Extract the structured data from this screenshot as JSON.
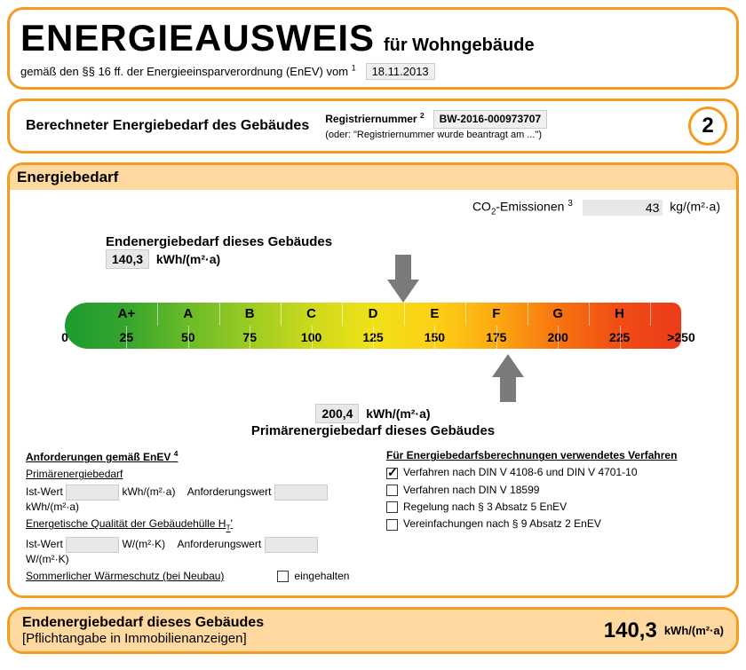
{
  "header": {
    "title": "ENERGIEAUSWEIS",
    "subtitle": "für Wohngebäude",
    "line2_prefix": "gemäß den §§ 16 ff. der Energieeinsparverordnung (EnEV) vom",
    "line2_sup": "1",
    "date": "18.11.2013"
  },
  "section2": {
    "left_title": "Berechneter Energiebedarf des Gebäudes",
    "reg_label": "Registriernummer",
    "reg_sup": "2",
    "reg_value": "BW-2016-000973707",
    "reg_note": "(oder: \"Registriernummer wurde beantragt am ...\")",
    "page_num": "2"
  },
  "energiebedarf": {
    "title": "Energiebedarf",
    "co2_label_prefix": "CO",
    "co2_label_suffix": "-Emissionen",
    "co2_sup": "3",
    "co2_value": "43",
    "co2_unit": "kg/(m²·a)",
    "endenergie_label": "Endenergiebedarf dieses Gebäudes",
    "endenergie_value": "140,3",
    "endenergie_unit": "kWh/(m²·a)",
    "primaer_label": "Primärenergiebedarf dieses Gebäudes",
    "primaer_value": "200,4",
    "primaer_unit": "kWh/(m²·a)",
    "arrow_top_percent": 54.9,
    "arrow_bottom_percent": 71.9,
    "scale": {
      "classes": [
        "A+",
        "A",
        "B",
        "C",
        "D",
        "E",
        "F",
        "G",
        "H"
      ],
      "numbers": [
        "0",
        "25",
        "50",
        "75",
        "100",
        "125",
        "150",
        "175",
        "200",
        "225",
        ">250"
      ],
      "class_colors": [
        "#1c9b2f",
        "#52b02b",
        "#8bc525",
        "#b9d31f",
        "#e6e01a",
        "#fde016",
        "#fcbc13",
        "#f98d12",
        "#ed3b1a"
      ],
      "num_colors": [
        "#1c9b2f",
        "#36a52d",
        "#6bbb28",
        "#9ccb22",
        "#cdd91c",
        "#f0e118",
        "#fdd015",
        "#fba912",
        "#f77410",
        "#f04c14",
        "#ed3b1a"
      ]
    }
  },
  "anforderungen": {
    "title": "Anforderungen gemäß EnEV",
    "title_sup": "4",
    "rows": [
      {
        "label": "Primärenergiebedarf",
        "underline": true
      },
      {
        "ist": "Ist-Wert",
        "unit": "kWh/(m²·a)",
        "anf": "Anforderungswert",
        "unit2": "kWh/(m²·a)"
      },
      {
        "label": "Energetische Qualität der Gebäudehülle H",
        "label_sub": "T",
        "label_suffix": "'",
        "underline": true
      },
      {
        "ist": "Ist-Wert",
        "unit": "W/(m²·K)",
        "anf": "Anforderungswert",
        "unit2": "W/(m²·K)"
      },
      {
        "label": "Sommerlicher Wärmeschutz (bei Neubau)",
        "underline": true,
        "checkbox": true,
        "check_label": "eingehalten"
      }
    ]
  },
  "verfahren": {
    "title": "Für Energiebedarfsberechnungen verwendetes Verfahren",
    "items": [
      {
        "checked": true,
        "label": "Verfahren nach DIN V 4108-6 und DIN V 4701-10"
      },
      {
        "checked": false,
        "label": "Verfahren nach DIN V 18599"
      },
      {
        "checked": false,
        "label": "Regelung nach § 3 Absatz 5 EnEV"
      },
      {
        "checked": false,
        "label": "Vereinfachungen nach § 9 Absatz 2 EnEV"
      }
    ]
  },
  "footer": {
    "line1": "Endenergiebedarf dieses Gebäudes",
    "line2": "[Pflichtangabe in Immobilienanzeigen]",
    "value": "140,3",
    "unit": "kWh/(m²·a)"
  },
  "colors": {
    "orange": "#f39c1e",
    "bar_bg": "#ffd9a0"
  }
}
